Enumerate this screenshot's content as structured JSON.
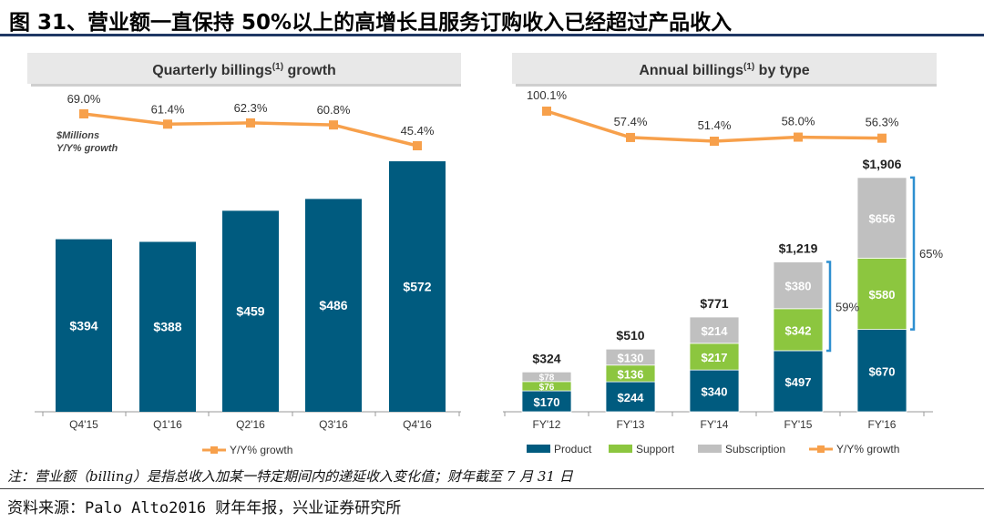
{
  "title": "图 31、营业额一直保持 50%以上的高增长且服务订购收入已经超过产品收入",
  "note": "注：营业额（billing）是指总收入加某一特定期间内的递延收入变化值；财年截至 7 月 31 日",
  "source": "资料来源：Palo Alto2016 财年年报，兴业证券研究所",
  "colors": {
    "product": "#005b7f",
    "support": "#8cc63f",
    "subscription": "#c0c0c0",
    "growth": "#f7a04b",
    "header_bg": "#e8e8e8"
  },
  "chart_data": [
    {
      "type": "bar",
      "title": "Quarterly billings",
      "title_sup": "(1)",
      "title_suffix": " growth",
      "units_label": "$Millions",
      "growth_label": "Y/Y% growth",
      "categories": [
        "Q4'15",
        "Q1'16",
        "Q2'16",
        "Q3'16",
        "Q4'16"
      ],
      "values": [
        394,
        388,
        459,
        486,
        572
      ],
      "value_labels": [
        "$394",
        "$388",
        "$459",
        "$486",
        "$572"
      ],
      "growth": [
        69.0,
        61.4,
        62.3,
        60.8,
        45.4
      ],
      "growth_labels": [
        "69.0%",
        "61.4%",
        "62.3%",
        "60.8%",
        "45.4%"
      ],
      "legend": "Y/Y% growth"
    },
    {
      "type": "bar",
      "stacked": true,
      "title": "Annual billings",
      "title_sup": "(1)",
      "title_suffix": " by type",
      "categories": [
        "FY'12",
        "FY'13",
        "FY'14",
        "FY'15",
        "FY'16"
      ],
      "series": [
        {
          "name": "Product",
          "values": [
            170,
            244,
            340,
            497,
            670
          ],
          "labels": [
            "$170",
            "$244",
            "$340",
            "$497",
            "$670"
          ]
        },
        {
          "name": "Support",
          "values": [
            76,
            136,
            217,
            342,
            580
          ],
          "labels": [
            "$76",
            "$136",
            "$217",
            "$342",
            "$580"
          ]
        },
        {
          "name": "Subscription",
          "values": [
            78,
            130,
            214,
            380,
            656
          ],
          "labels": [
            "$78",
            "$130",
            "$214",
            "$380",
            "$656"
          ]
        }
      ],
      "totals": [
        324,
        510,
        771,
        1219,
        1906
      ],
      "total_labels": [
        "$324",
        "$510",
        "$771",
        "$1,219",
        "$1,906"
      ],
      "growth": [
        100.1,
        57.4,
        51.4,
        58.0,
        56.3
      ],
      "growth_labels": [
        "100.1%",
        "57.4%",
        "51.4%",
        "58.0%",
        "56.3%"
      ],
      "brackets": [
        {
          "category": "FY'15",
          "label": "59%"
        },
        {
          "category": "FY'16",
          "label": "65%"
        }
      ],
      "legend": [
        "Product",
        "Support",
        "Subscription",
        "Y/Y% growth"
      ]
    }
  ]
}
